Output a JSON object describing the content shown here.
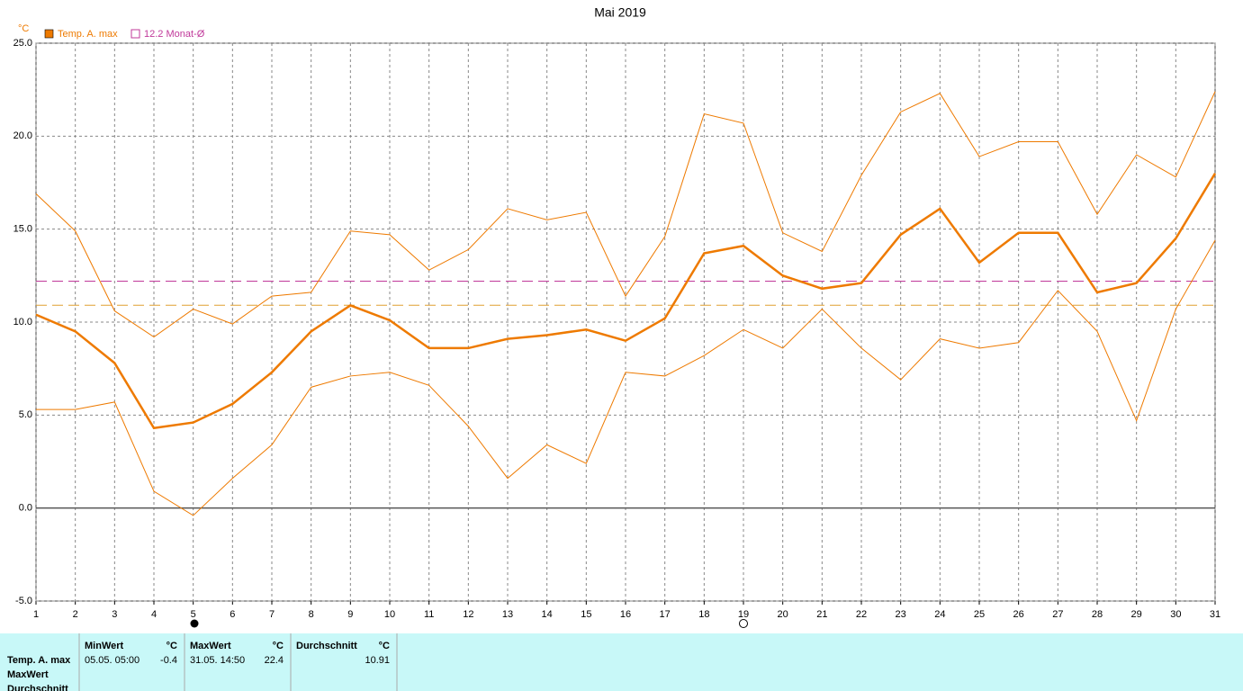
{
  "chart_data": {
    "type": "line",
    "title": "Mai 2019",
    "unit": "°C",
    "x": [
      1,
      2,
      3,
      4,
      5,
      6,
      7,
      8,
      9,
      10,
      11,
      12,
      13,
      14,
      15,
      16,
      17,
      18,
      19,
      20,
      21,
      22,
      23,
      24,
      25,
      26,
      27,
      28,
      29,
      30,
      31
    ],
    "xlim": [
      1,
      31
    ],
    "xticks": [
      1,
      2,
      3,
      4,
      5,
      6,
      7,
      8,
      9,
      10,
      11,
      12,
      13,
      14,
      15,
      16,
      17,
      18,
      19,
      20,
      21,
      22,
      23,
      24,
      25,
      26,
      27,
      28,
      29,
      30,
      31
    ],
    "ylim": [
      -5,
      25
    ],
    "yticks": [
      {
        "value": -5,
        "label": "-5.0"
      },
      {
        "value": 0,
        "label": "0.0"
      },
      {
        "value": 5,
        "label": "5.0"
      },
      {
        "value": 10,
        "label": "10.0"
      },
      {
        "value": 15,
        "label": "15.0"
      },
      {
        "value": 20,
        "label": "20.0"
      },
      {
        "value": 25,
        "label": "25.0"
      }
    ],
    "grid": true,
    "legend": "top-left",
    "series": [
      {
        "name": "Temp. A. max",
        "color": "#ee7a00",
        "values": [
          10.4,
          9.5,
          7.8,
          4.3,
          4.6,
          5.6,
          7.3,
          9.5,
          10.9,
          10.1,
          8.6,
          8.6,
          9.1,
          9.3,
          9.6,
          9.0,
          10.2,
          13.7,
          14.1,
          12.5,
          11.8,
          12.1,
          14.7,
          16.1,
          13.2,
          14.8,
          14.8,
          11.6,
          12.1,
          14.5,
          18.0
        ]
      },
      {
        "color": "#ee7a00",
        "values": [
          16.9,
          14.9,
          10.6,
          9.2,
          10.7,
          9.9,
          11.4,
          11.6,
          14.9,
          14.7,
          12.8,
          13.9,
          16.1,
          15.5,
          15.9,
          11.4,
          14.6,
          21.2,
          20.7,
          14.8,
          13.8,
          17.9,
          21.3,
          22.3,
          18.9,
          19.7,
          19.7,
          15.8,
          19.0,
          17.8,
          22.4
        ]
      },
      {
        "color": "#ee7a00",
        "values": [
          5.3,
          5.3,
          5.7,
          0.9,
          -0.4,
          1.6,
          3.4,
          6.5,
          7.1,
          7.3,
          6.6,
          4.4,
          1.6,
          3.4,
          2.4,
          7.3,
          7.1,
          8.2,
          9.6,
          8.6,
          10.7,
          8.6,
          6.9,
          9.1,
          8.6,
          8.9,
          11.7,
          9.5,
          4.7,
          10.7,
          14.4
        ]
      }
    ],
    "reference_lines": [
      {
        "label": "12.2 Monat-Ø",
        "value": 12.2,
        "color": "#c0399a"
      },
      {
        "value": 10.91,
        "color": "#e0a030"
      }
    ]
  },
  "table": {
    "row_labels": [
      "Temp. A. max",
      "MaxWert",
      "Durchschnitt"
    ],
    "groups": [
      {
        "header": "MinWert",
        "unit": "°C",
        "time": "05.05.  05:00",
        "value": -0.4
      },
      {
        "header": "MaxWert",
        "unit": "°C",
        "time": "31.05.  14:50",
        "value": 22.4
      },
      {
        "header": "Durchschnitt",
        "unit": "°C",
        "value": 10.91
      }
    ]
  }
}
